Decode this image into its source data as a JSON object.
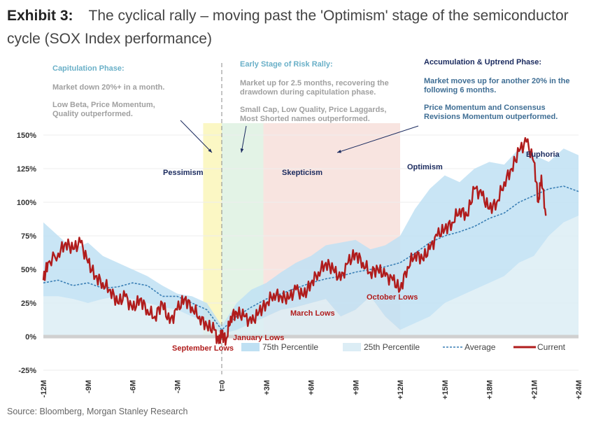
{
  "header": {
    "exhibit": "Exhibit 3:",
    "title": "The cyclical rally – moving past the 'Optimism' stage of the semiconductor cycle (SOX Index performance)"
  },
  "annotations": {
    "capitulation": {
      "heading": "Capitulation Phase:",
      "lines": [
        "Market down 20%+ in a month.",
        "Low Beta, Price Momentum, Quality outperformed."
      ]
    },
    "early": {
      "heading": "Early Stage of Risk Rally:",
      "lines": [
        "Market up for 2.5 months, recovering the drawdown during capitulation phase.",
        "Small Cap, Low Quality, Price Laggards, Most Shorted names outperformed."
      ]
    },
    "accumulation": {
      "heading": "Accumulation & Uptrend Phase:",
      "lines": [
        "Market moves up for another 20% in the following 6 months.",
        "Price Momentum and Consensus Revisions Momentum outperformed."
      ]
    }
  },
  "source": "Source: Bloomberg, Morgan Stanley Research",
  "colors": {
    "current": "#b01c1c",
    "average": "#3a7fb5",
    "p75": "#bfe0f3",
    "p25": "#dcedf5",
    "pessimism": "#fbf7c4",
    "early": "#e3f3e6",
    "skepticism": "#f8e4e0"
  },
  "chart_data": {
    "type": "line",
    "xlabel": "",
    "ylabel": "",
    "xlim": [
      -12,
      24
    ],
    "ylim": [
      -25,
      150
    ],
    "x_ticks": [
      "-12M",
      "-9M",
      "-6M",
      "-3M",
      "t=0",
      "+3M",
      "+6M",
      "+9M",
      "+12M",
      "+15M",
      "+18M",
      "+21M",
      "+24M"
    ],
    "y_ticks": [
      "150%",
      "125%",
      "100%",
      "75%",
      "50%",
      "25%",
      "0%",
      "-25%"
    ],
    "stages": [
      {
        "label": "Pessimism",
        "from": -1.25,
        "to": 0
      },
      {
        "label": "Early",
        "from": 0,
        "to": 2.8
      },
      {
        "label": "Skepticism",
        "from": 2.8,
        "to": 12
      }
    ],
    "stage_labels": [
      "Pessimism",
      "Skepticism",
      "Optimism",
      "Euphoria"
    ],
    "lows": [
      "September Lows",
      "January Lows",
      "March Lows",
      "October Lows"
    ],
    "legend": [
      "75th Percentile",
      "25th Percentile",
      "Average",
      "Current"
    ],
    "series": [
      {
        "name": "Current",
        "x": [
          -12,
          -11.7,
          -11,
          -10.5,
          -10,
          -9.5,
          -9,
          -8.5,
          -8,
          -7.5,
          -7,
          -6.5,
          -6,
          -5.5,
          -5,
          -4.5,
          -4,
          -3.5,
          -3,
          -2.5,
          -2,
          -1.5,
          -1,
          -0.5,
          -0.2,
          0,
          0.3,
          0.6,
          1,
          1.5,
          2,
          2.5,
          3,
          3.5,
          4,
          4.5,
          5,
          5.5,
          6,
          6.5,
          7,
          7.5,
          8,
          8.5,
          9,
          9.5,
          10,
          10.5,
          11,
          11.5,
          12,
          12.5,
          13,
          13.5,
          14,
          14.5,
          15,
          15.5,
          16,
          16.5,
          17,
          17.5,
          18,
          18.5,
          19,
          19.5,
          20,
          20.5,
          21,
          21.3,
          21.5,
          21.8
        ],
        "values": [
          42,
          55,
          62,
          70,
          65,
          70,
          55,
          45,
          40,
          35,
          25,
          30,
          20,
          28,
          20,
          15,
          25,
          10,
          20,
          28,
          22,
          15,
          8,
          5,
          -5,
          2,
          -2,
          15,
          18,
          15,
          10,
          18,
          25,
          32,
          30,
          28,
          35,
          30,
          40,
          48,
          55,
          50,
          42,
          55,
          62,
          55,
          48,
          50,
          45,
          42,
          35,
          52,
          62,
          58,
          65,
          75,
          80,
          85,
          95,
          90,
          110,
          105,
          95,
          100,
          115,
          125,
          138,
          145,
          130,
          100,
          120,
          90
        ]
      },
      {
        "name": "Average",
        "x": [
          -12,
          -11,
          -10,
          -9,
          -8,
          -7,
          -6,
          -5,
          -4,
          -3,
          -2,
          -1,
          0,
          1,
          2,
          3,
          4,
          5,
          6,
          7,
          8,
          9,
          10,
          11,
          12,
          13,
          14,
          15,
          16,
          17,
          18,
          19,
          20,
          21,
          22,
          23,
          24
        ],
        "values": [
          40,
          42,
          38,
          40,
          36,
          37,
          40,
          38,
          30,
          30,
          25,
          20,
          5,
          15,
          22,
          28,
          32,
          36,
          40,
          43,
          45,
          48,
          50,
          52,
          55,
          62,
          70,
          75,
          78,
          82,
          88,
          92,
          100,
          105,
          110,
          112,
          108
        ]
      },
      {
        "name": "75th Percentile",
        "x": [
          -12,
          -11,
          -10,
          -9,
          -8,
          -7,
          -6,
          -5,
          -4,
          -3,
          -2,
          -1,
          0,
          1,
          2,
          3,
          4,
          5,
          6,
          7,
          8,
          9,
          10,
          11,
          12,
          13,
          14,
          15,
          16,
          17,
          18,
          19,
          20,
          21,
          22,
          23,
          24
        ],
        "values": [
          85,
          75,
          65,
          70,
          60,
          55,
          50,
          45,
          38,
          32,
          30,
          25,
          8,
          25,
          35,
          40,
          48,
          55,
          60,
          68,
          70,
          72,
          65,
          68,
          75,
          95,
          110,
          120,
          115,
          125,
          130,
          128,
          140,
          135,
          130,
          140,
          135
        ]
      },
      {
        "name": "25th Percentile",
        "x": [
          -12,
          -11,
          -10,
          -9,
          -8,
          -7,
          -6,
          -5,
          -4,
          -3,
          -2,
          -1,
          0,
          1,
          2,
          3,
          4,
          5,
          6,
          7,
          8,
          9,
          10,
          11,
          12,
          13,
          14,
          15,
          16,
          17,
          18,
          19,
          20,
          21,
          22,
          23,
          24
        ],
        "values": [
          30,
          30,
          28,
          25,
          28,
          30,
          28,
          25,
          22,
          20,
          15,
          10,
          2,
          5,
          10,
          15,
          20,
          22,
          25,
          28,
          15,
          20,
          30,
          15,
          5,
          10,
          15,
          25,
          30,
          35,
          40,
          45,
          55,
          60,
          75,
          85,
          90
        ]
      }
    ]
  }
}
